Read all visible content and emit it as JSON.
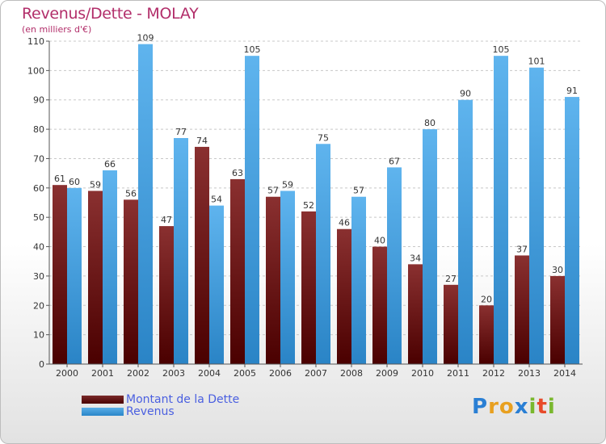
{
  "title": "Revenus/Dette - MOLAY",
  "subtitle": "(en milliers d'€)",
  "colors": {
    "title": "#b22e6a",
    "dette": "#6b1616",
    "revenus": "#3a9ee0",
    "legend_text": "#4a5fe0"
  },
  "legend": {
    "dette": "Montant de la Dette",
    "revenus": "Revenus"
  },
  "logo": {
    "letters": [
      "P",
      "r",
      "o",
      "x",
      "i",
      "t",
      "i"
    ],
    "colors": [
      "#2a7fd4",
      "#e8a020",
      "#e8a020",
      "#2a7fd4",
      "#7ab82e",
      "#e84a2a",
      "#7ab82e"
    ]
  },
  "chart_data": {
    "type": "bar",
    "categories": [
      "2000",
      "2001",
      "2002",
      "2003",
      "2004",
      "2005",
      "2006",
      "2007",
      "2008",
      "2009",
      "2010",
      "2011",
      "2012",
      "2013",
      "2014"
    ],
    "series": [
      {
        "name": "Montant de la Dette",
        "values": [
          61,
          59,
          56,
          47,
          74,
          63,
          57,
          52,
          46,
          40,
          34,
          27,
          20,
          37,
          30
        ]
      },
      {
        "name": "Revenus",
        "values": [
          60,
          66,
          109,
          77,
          54,
          105,
          59,
          75,
          57,
          67,
          80,
          90,
          105,
          101,
          91
        ]
      }
    ],
    "ylim": [
      0,
      110
    ],
    "yticks": [
      0,
      10,
      20,
      30,
      40,
      50,
      60,
      70,
      80,
      90,
      100,
      110
    ],
    "grid": "horizontal dashed",
    "title": "Revenus/Dette - MOLAY",
    "ylabel": "(en milliers d'€)"
  }
}
